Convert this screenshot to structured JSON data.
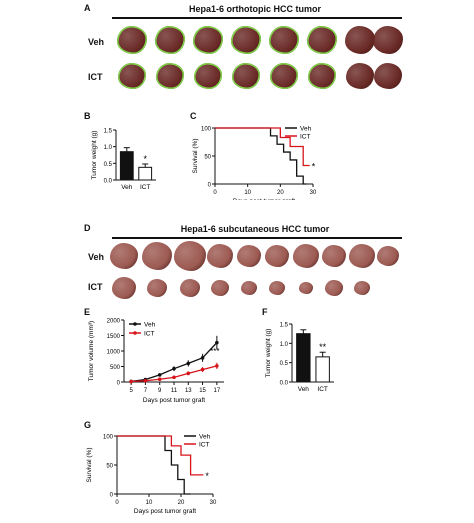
{
  "panelA": {
    "label": "A",
    "title": "Hepa1-6 orthotopic HCC tumor",
    "row_labels": [
      "Veh",
      "ICT"
    ]
  },
  "panelD": {
    "label": "D",
    "title": "Hepa1-6 subcutaneous HCC tumor",
    "row_labels": [
      "Veh",
      "ICT"
    ]
  },
  "colors": {
    "veh": "#111111",
    "ict": "#d8141b",
    "liver": "#6a2a26",
    "tumor_outline": "#7fd44a",
    "subq": "#9c5a52"
  },
  "chart_data": [
    {
      "panel": "B",
      "type": "bar",
      "ylabel": "Tumor weight (g)",
      "ylim": [
        0,
        1.5
      ],
      "yticks": [
        0,
        0.5,
        1.0,
        1.5
      ],
      "categories": [
        "Veh",
        "ICT"
      ],
      "values": [
        0.85,
        0.38
      ],
      "errors": [
        0.12,
        0.1
      ],
      "fills": [
        "#111111",
        "#ffffff"
      ],
      "annotation": "*"
    },
    {
      "panel": "C",
      "type": "line",
      "xlabel": "Days post tumor graft",
      "ylabel": "Survival (%)",
      "xlim": [
        0,
        30
      ],
      "xticks": [
        0,
        10,
        20,
        30
      ],
      "ylim": [
        0,
        100
      ],
      "yticks": [
        0,
        50,
        100
      ],
      "series": [
        {
          "name": "Veh",
          "color": "#111111",
          "x": [
            0,
            17,
            17,
            19,
            19,
            21,
            21,
            23,
            23,
            25,
            25,
            27,
            27,
            28
          ],
          "y": [
            100,
            100,
            86,
            86,
            71,
            71,
            57,
            57,
            43,
            43,
            14,
            14,
            0,
            0
          ]
        },
        {
          "name": "ICT",
          "color": "#d8141b",
          "x": [
            0,
            20,
            20,
            23,
            23,
            27,
            27,
            29
          ],
          "y": [
            100,
            100,
            83,
            83,
            67,
            67,
            33,
            33
          ]
        }
      ],
      "annotation": "*"
    },
    {
      "panel": "E",
      "type": "line",
      "xlabel": "Days post tumor graft",
      "ylabel": "Tumor volume (mm³)",
      "ylim": [
        0,
        2000
      ],
      "yticks": [
        0,
        500,
        1000,
        1500,
        2000
      ],
      "x": [
        5,
        7,
        9,
        11,
        13,
        15,
        17
      ],
      "series": [
        {
          "name": "Veh",
          "color": "#111111",
          "values": [
            20,
            80,
            230,
            430,
            600,
            780,
            1270
          ],
          "errors": [
            10,
            25,
            50,
            80,
            100,
            130,
            220
          ]
        },
        {
          "name": "ICT",
          "color": "#d8141b",
          "values": [
            15,
            40,
            90,
            150,
            280,
            400,
            520
          ],
          "errors": [
            8,
            15,
            30,
            40,
            60,
            80,
            100
          ]
        }
      ],
      "annotation": "***"
    },
    {
      "panel": "F",
      "type": "bar",
      "ylabel": "Tumor weight (g)",
      "ylim": [
        0,
        1.5
      ],
      "yticks": [
        0,
        0.5,
        1.0,
        1.5
      ],
      "categories": [
        "Veh",
        "ICT"
      ],
      "values": [
        1.25,
        0.65
      ],
      "errors": [
        0.1,
        0.12
      ],
      "fills": [
        "#111111",
        "#ffffff"
      ],
      "annotation": "**"
    },
    {
      "panel": "G",
      "type": "line",
      "xlabel": "Days post tumor graft",
      "ylabel": "Survival (%)",
      "xlim": [
        0,
        30
      ],
      "xticks": [
        0,
        10,
        20,
        30
      ],
      "ylim": [
        0,
        100
      ],
      "yticks": [
        0,
        50,
        100
      ],
      "series": [
        {
          "name": "Veh",
          "color": "#111111",
          "x": [
            0,
            15,
            15,
            17,
            17,
            19,
            19,
            21,
            21,
            23
          ],
          "y": [
            100,
            100,
            75,
            75,
            50,
            50,
            25,
            25,
            0,
            0
          ]
        },
        {
          "name": "ICT",
          "color": "#d8141b",
          "x": [
            0,
            17,
            17,
            20,
            20,
            23,
            23,
            27
          ],
          "y": [
            100,
            100,
            83,
            83,
            67,
            67,
            33,
            33
          ]
        }
      ],
      "annotation": "*"
    }
  ]
}
